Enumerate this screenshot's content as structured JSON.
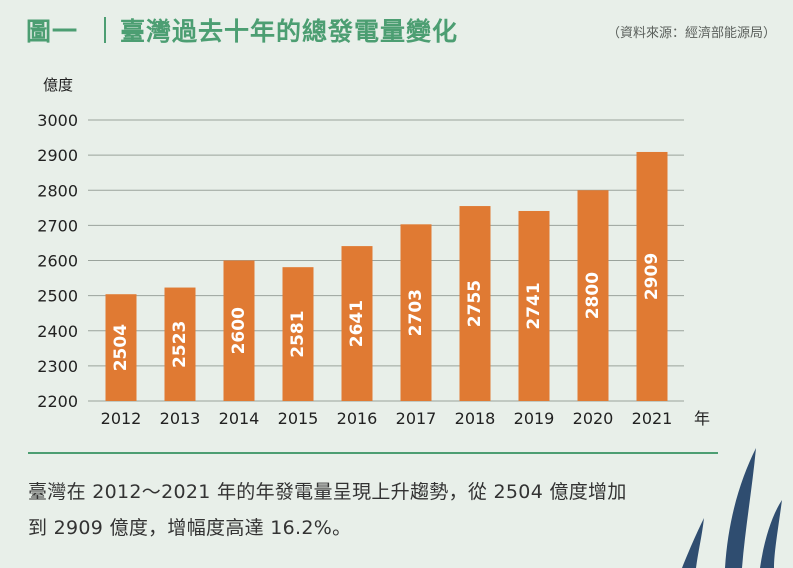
{
  "header": {
    "figure_number": "圖一",
    "title": "臺灣過去十年的總發電量變化",
    "source": "（資料來源：經濟部能源局）"
  },
  "chart_data": {
    "type": "bar",
    "title": "臺灣過去十年的總發電量變化",
    "ylabel": "億度",
    "xlabel": "年",
    "categories": [
      "2012",
      "2013",
      "2014",
      "2015",
      "2016",
      "2017",
      "2018",
      "2019",
      "2020",
      "2021"
    ],
    "values": [
      2504,
      2523,
      2600,
      2581,
      2641,
      2703,
      2755,
      2741,
      2800,
      2909
    ],
    "ylim": [
      2200,
      3000
    ],
    "yticks": [
      2200,
      2300,
      2400,
      2500,
      2600,
      2700,
      2800,
      2900,
      3000
    ],
    "grid": true,
    "bar_color": "#e07a33",
    "grid_color": "#9aa39c",
    "value_label_color": "#ffffff"
  },
  "caption": {
    "line1": "臺灣在 2012～2021 年的年發電量呈現上升趨勢，從 2504 億度增加",
    "line2": "到 2909 億度，增幅度高達 16.2%。"
  },
  "colors": {
    "accent": "#4c9e72",
    "background": "#e8efe9",
    "leaf": "#2f4d70"
  }
}
